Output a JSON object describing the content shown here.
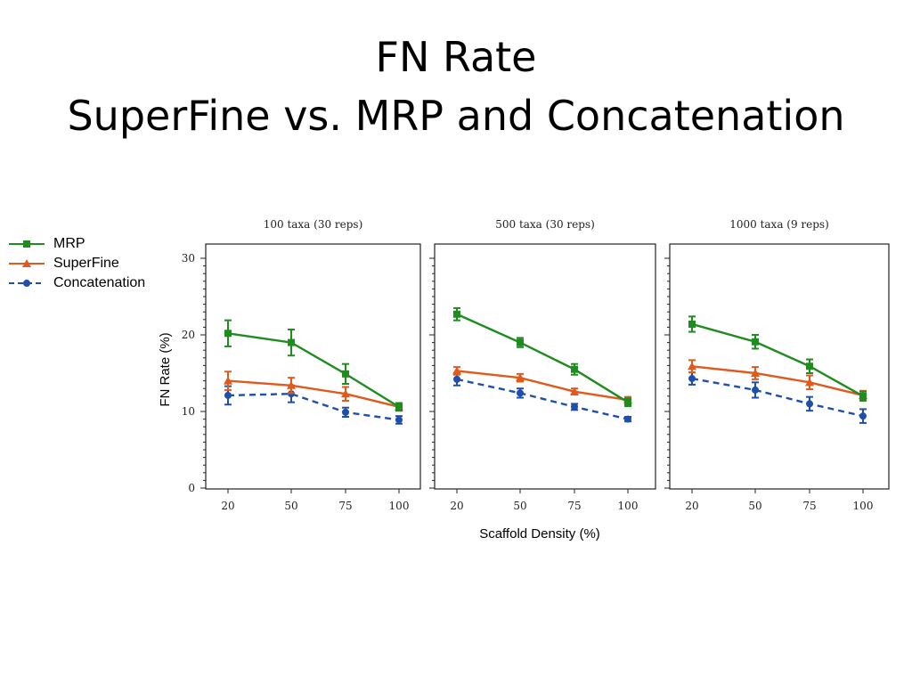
{
  "slide": {
    "title_line1": "FN Rate",
    "title_line2": "SuperFine vs. MRP and Concatenation"
  },
  "legend": [
    {
      "name": "MRP",
      "color": "#1e8c1e",
      "marker": "square",
      "dash": "solid"
    },
    {
      "name": "SuperFine",
      "color": "#e05a1e",
      "marker": "triangle",
      "dash": "solid"
    },
    {
      "name": "Concatenation",
      "color": "#1f4faa",
      "marker": "circle",
      "dash": "dashed"
    }
  ],
  "chart_data": {
    "type": "line",
    "ylabel": "FN Rate (%)",
    "xlabel": "Scaffold Density (%)",
    "x": [
      20,
      50,
      75,
      100
    ],
    "ylim": [
      0,
      30
    ],
    "yticks": [
      0,
      10,
      20,
      30
    ],
    "grid": false,
    "panels": [
      {
        "title": "100 taxa (30 reps)",
        "series": [
          {
            "name": "MRP",
            "values": [
              20.2,
              19.0,
              14.9,
              10.6
            ],
            "errors": [
              1.7,
              1.7,
              1.3,
              0.5
            ]
          },
          {
            "name": "SuperFine",
            "values": [
              14.0,
              13.4,
              12.3,
              10.6
            ],
            "errors": [
              1.2,
              1.0,
              0.9,
              0.5
            ]
          },
          {
            "name": "Concatenation",
            "values": [
              12.1,
              12.3,
              9.9,
              8.9
            ],
            "errors": [
              1.2,
              1.1,
              0.6,
              0.5
            ]
          }
        ]
      },
      {
        "title": "500 taxa (30 reps)",
        "series": [
          {
            "name": "MRP",
            "values": [
              22.7,
              19.0,
              15.5,
              11.2
            ],
            "errors": [
              0.8,
              0.6,
              0.7,
              0.5
            ]
          },
          {
            "name": "SuperFine",
            "values": [
              15.3,
              14.4,
              12.6,
              11.5
            ],
            "errors": [
              0.5,
              0.5,
              0.4,
              0.4
            ]
          },
          {
            "name": "Concatenation",
            "values": [
              14.2,
              12.4,
              10.6,
              9.0
            ],
            "errors": [
              0.8,
              0.6,
              0.4,
              0.3
            ]
          }
        ]
      },
      {
        "title": "1000 taxa (9 reps)",
        "series": [
          {
            "name": "MRP",
            "values": [
              21.4,
              19.1,
              15.9,
              12.0
            ],
            "errors": [
              1.0,
              0.9,
              0.9,
              0.6
            ]
          },
          {
            "name": "SuperFine",
            "values": [
              15.9,
              15.0,
              13.8,
              12.1
            ],
            "errors": [
              0.8,
              0.8,
              0.9,
              0.6
            ]
          },
          {
            "name": "Concatenation",
            "values": [
              14.3,
              12.8,
              11.0,
              9.4
            ],
            "errors": [
              0.8,
              1.0,
              0.9,
              0.9
            ]
          }
        ]
      }
    ]
  }
}
